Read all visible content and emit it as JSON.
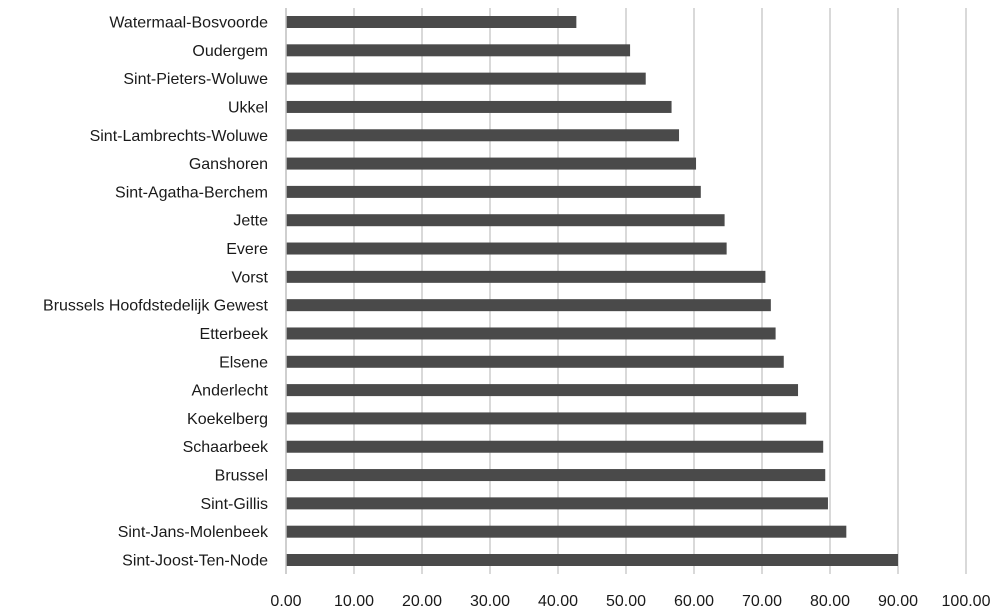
{
  "colors": {
    "bar": "#4a4a4a",
    "grid": "#d9d9d9",
    "axis": "#bfbfbf",
    "text": "#1a1a1a"
  },
  "chart_data": {
    "type": "bar",
    "orientation": "horizontal",
    "title": "",
    "xlabel": "",
    "ylabel": "",
    "xlim": [
      0,
      100
    ],
    "x_ticks": [
      "0.00",
      "10.00",
      "20.00",
      "30.00",
      "40.00",
      "50.00",
      "60.00",
      "70.00",
      "80.00",
      "90.00",
      "100.00"
    ],
    "grid": true,
    "legend": "none",
    "categories": [
      "Watermaal-Bosvoorde",
      "Oudergem",
      "Sint-Pieters-Woluwe",
      "Ukkel",
      "Sint-Lambrechts-Woluwe",
      "Ganshoren",
      "Sint-Agatha-Berchem",
      "Jette",
      "Evere",
      "Vorst",
      "Brussels Hoofdstedelijk Gewest",
      "Etterbeek",
      "Elsene",
      "Anderlecht",
      "Koekelberg",
      "Schaarbeek",
      "Brussel",
      "Sint-Gillis",
      "Sint-Jans-Molenbeek",
      "Sint-Joost-Ten-Node"
    ],
    "values": [
      42.7,
      50.6,
      52.9,
      56.7,
      57.8,
      60.3,
      61.0,
      64.5,
      64.8,
      70.5,
      71.3,
      72.0,
      73.2,
      75.3,
      76.5,
      79.0,
      79.3,
      79.7,
      82.4,
      90.0
    ]
  }
}
